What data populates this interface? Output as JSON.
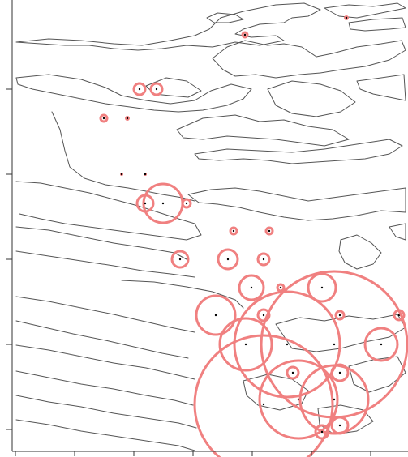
{
  "map": {
    "type": "proportional-symbol-map",
    "coastline_color": "#555555",
    "circle_color": "#f08080",
    "point_color": "#000000",
    "axes": {
      "x_ticks": 7,
      "y_ticks": 5,
      "tick_labels": []
    },
    "sites": [
      {
        "name": "site-1",
        "c": [
          302,
          43
        ],
        "r": 3
      },
      {
        "name": "site-2",
        "c": [
          427,
          22
        ],
        "r": 2
      },
      {
        "name": "site-3",
        "c": [
          172,
          110
        ],
        "r": 7
      },
      {
        "name": "site-4",
        "c": [
          193,
          110
        ],
        "r": 7
      },
      {
        "name": "site-5",
        "c": [
          128,
          146
        ],
        "r": 4
      },
      {
        "name": "site-6",
        "c": [
          157,
          146
        ],
        "r": 2
      },
      {
        "name": "site-7",
        "c": [
          150,
          215
        ],
        "r": 1
      },
      {
        "name": "site-8",
        "c": [
          179,
          215
        ],
        "r": 1
      },
      {
        "name": "site-9",
        "c": [
          201,
          251
        ],
        "r": 24
      },
      {
        "name": "site-10",
        "c": [
          179,
          251
        ],
        "r": 10
      },
      {
        "name": "site-11",
        "c": [
          230,
          251
        ],
        "r": 5
      },
      {
        "name": "site-12",
        "c": [
          288,
          285
        ],
        "r": 4
      },
      {
        "name": "site-13",
        "c": [
          332,
          285
        ],
        "r": 4
      },
      {
        "name": "site-14",
        "c": [
          222,
          320
        ],
        "r": 10
      },
      {
        "name": "site-15",
        "c": [
          281,
          320
        ],
        "r": 12
      },
      {
        "name": "site-16",
        "c": [
          325,
          320
        ],
        "r": 7
      },
      {
        "name": "site-17",
        "c": [
          310,
          355
        ],
        "r": 15
      },
      {
        "name": "site-18",
        "c": [
          346,
          355
        ],
        "r": 4
      },
      {
        "name": "site-19",
        "c": [
          397,
          355
        ],
        "r": 17
      },
      {
        "name": "site-20",
        "c": [
          266,
          389
        ],
        "r": 24
      },
      {
        "name": "site-21",
        "c": [
          325,
          389
        ],
        "r": 7
      },
      {
        "name": "site-22",
        "c": [
          419,
          389
        ],
        "r": 5
      },
      {
        "name": "site-23",
        "c": [
          492,
          389
        ],
        "r": 6
      },
      {
        "name": "site-24",
        "c": [
          303,
          425
        ],
        "r": 32
      },
      {
        "name": "site-25",
        "c": [
          354,
          425
        ],
        "r": 65
      },
      {
        "name": "site-26",
        "c": [
          412,
          425
        ],
        "r": 90
      },
      {
        "name": "site-27",
        "c": [
          470,
          425
        ],
        "r": 20
      },
      {
        "name": "site-28",
        "c": [
          361,
          460
        ],
        "r": 7
      },
      {
        "name": "site-29",
        "c": [
          419,
          460
        ],
        "r": 10
      },
      {
        "name": "site-30",
        "c": [
          325,
          499
        ],
        "r": 85
      },
      {
        "name": "site-31",
        "c": [
          368,
          493
        ],
        "r": 48
      },
      {
        "name": "site-32",
        "c": [
          412,
          493
        ],
        "r": 42
      },
      {
        "name": "site-33",
        "c": [
          397,
          533
        ],
        "r": 8
      },
      {
        "name": "site-34",
        "c": [
          419,
          525
        ],
        "r": 10
      }
    ]
  }
}
